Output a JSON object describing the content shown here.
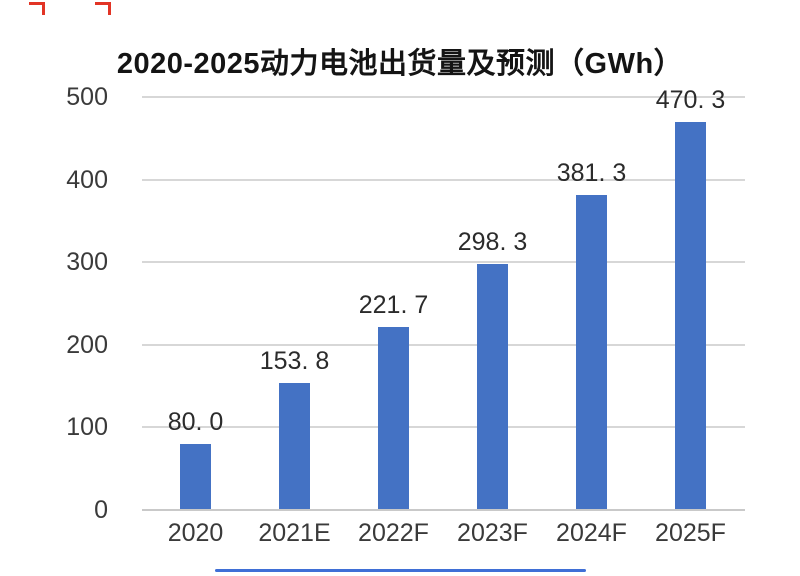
{
  "canvas": {
    "background": "#ffffff"
  },
  "chart_data": {
    "type": "bar",
    "title": "2020-2025动力电池出货量及预测（GWh）",
    "categories": [
      "2020",
      "2021E",
      "2022F",
      "2023F",
      "2024F",
      "2025F"
    ],
    "values": [
      80.0,
      153.8,
      221.7,
      298.3,
      381.3,
      470.3
    ],
    "bar_labels": [
      "80. 0",
      "153. 8",
      "221. 7",
      "298. 3",
      "381. 3",
      "470. 3"
    ],
    "y_ticks": [
      0,
      100,
      200,
      300,
      400,
      500
    ],
    "ylim": [
      0,
      500
    ],
    "xlabel": "",
    "ylabel": "",
    "grid": true,
    "legend": false,
    "bar_color": "#4472C4",
    "grid_color": "#d7d7d7",
    "axis_line_color": "#c9c9c9",
    "tick_color": "#3a3a3a",
    "label_color": "#2b2b2b",
    "title_color": "#141414"
  },
  "artifacts": {
    "red_mark_color": "#e23425",
    "blue_line_color": "#3f6fd6"
  }
}
